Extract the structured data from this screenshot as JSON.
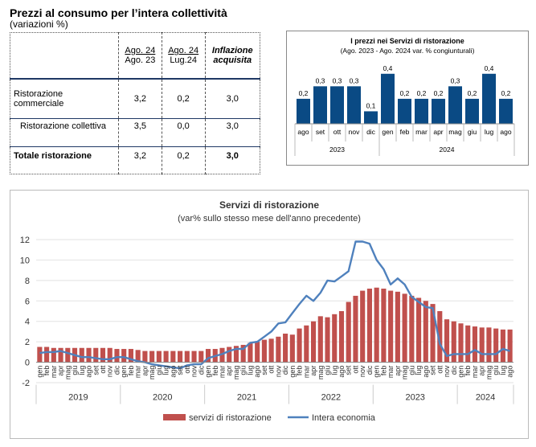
{
  "header": {
    "title": "Prezzi al consumo per l’intera collettività",
    "subtitle": "(variazioni %)"
  },
  "table": {
    "columns": [
      {
        "line1": "Ago. 24",
        "line2": "Ago. 23"
      },
      {
        "line1": "Ago. 24",
        "line2": "Lug.24"
      },
      {
        "line1": "Inflazione",
        "line2": "acquisita"
      }
    ],
    "rows": [
      {
        "label": "Ristorazione commerciale",
        "values": [
          "3,2",
          "0,2",
          "3,0"
        ]
      },
      {
        "label": "Ristorazione collettiva",
        "values": [
          "3,5",
          "0,0",
          "3,0"
        ]
      },
      {
        "label": "Totale ristorazione",
        "values": [
          "3,2",
          "0,2",
          "3,0"
        ]
      }
    ]
  },
  "chart_data": [
    {
      "type": "bar",
      "title": "I prezzi nei Servizi di ristorazione",
      "subtitle": "(Ago. 2023 - Ago. 2024 var. % congiunturali)",
      "color": "#0a4a84",
      "categories": [
        "ago",
        "set",
        "ott",
        "nov",
        "dic",
        "gen",
        "feb",
        "mar",
        "apr",
        "mag",
        "giu",
        "lug",
        "ago"
      ],
      "values": [
        0.2,
        0.3,
        0.3,
        0.3,
        0.1,
        0.4,
        0.2,
        0.2,
        0.2,
        0.3,
        0.2,
        0.4,
        0.2
      ],
      "labels": [
        "0,2",
        "0,3",
        "0,3",
        "0,3",
        "0,1",
        "0,4",
        "0,2",
        "0,2",
        "0,2",
        "0,3",
        "0,2",
        "0,4",
        "0,2"
      ],
      "year_groups": [
        {
          "label": "2023",
          "count": 5
        },
        {
          "label": "2024",
          "count": 8
        }
      ],
      "ylim": [
        0,
        0.45
      ]
    },
    {
      "type": "bar+line",
      "title": "Servizi di ristorazione",
      "subtitle": "(var% sullo stesso mese dell'anno precedente)",
      "ylim": [
        -2,
        12
      ],
      "yticks": [
        -2,
        0,
        2,
        4,
        6,
        8,
        10,
        12
      ],
      "month_labels": [
        "gen",
        "feb",
        "mar",
        "apr",
        "mag",
        "giu",
        "lug",
        "ago",
        "set",
        "ott",
        "nov",
        "dic"
      ],
      "years": [
        "2019",
        "2020",
        "2021",
        "2022",
        "2023",
        "2024"
      ],
      "last_year_months": 8,
      "legend_position": "bottom",
      "series": [
        {
          "name": "servizi di ristorazione",
          "kind": "bar",
          "color": "#c0504d",
          "values": [
            1.5,
            1.5,
            1.4,
            1.4,
            1.4,
            1.4,
            1.4,
            1.4,
            1.4,
            1.4,
            1.4,
            1.3,
            1.3,
            1.3,
            1.2,
            1.1,
            1.1,
            1.1,
            1.1,
            1.1,
            1.1,
            1.1,
            1.1,
            1.1,
            1.3,
            1.3,
            1.4,
            1.5,
            1.6,
            1.7,
            1.9,
            2.0,
            2.2,
            2.3,
            2.5,
            2.8,
            2.7,
            3.3,
            3.6,
            4.0,
            4.5,
            4.4,
            4.7,
            5.0,
            5.9,
            6.5,
            7.0,
            7.2,
            7.3,
            7.2,
            7.0,
            6.9,
            6.7,
            6.5,
            6.3,
            6.0,
            5.7,
            5.0,
            4.2,
            4.0,
            3.8,
            3.6,
            3.5,
            3.4,
            3.4,
            3.3,
            3.2,
            3.2
          ]
        },
        {
          "name": "Intera economia",
          "kind": "line",
          "color": "#4f81bd",
          "values": [
            0.9,
            1.0,
            1.0,
            1.1,
            0.9,
            0.7,
            0.5,
            0.5,
            0.4,
            0.3,
            0.3,
            0.5,
            0.5,
            0.3,
            0.1,
            0.0,
            -0.2,
            -0.3,
            -0.4,
            -0.5,
            -0.6,
            -0.3,
            -0.2,
            -0.2,
            0.4,
            0.6,
            0.8,
            1.1,
            1.3,
            1.3,
            1.9,
            2.0,
            2.5,
            3.0,
            3.8,
            3.9,
            4.8,
            5.7,
            6.5,
            6.0,
            6.8,
            8.0,
            7.9,
            8.4,
            8.9,
            11.8,
            11.8,
            11.6,
            10.0,
            9.1,
            7.6,
            8.2,
            7.6,
            6.4,
            5.9,
            5.4,
            5.3,
            1.8,
            0.6,
            0.8,
            0.8,
            0.8,
            1.2,
            0.8,
            0.8,
            0.8,
            1.3,
            1.1
          ]
        }
      ]
    }
  ]
}
